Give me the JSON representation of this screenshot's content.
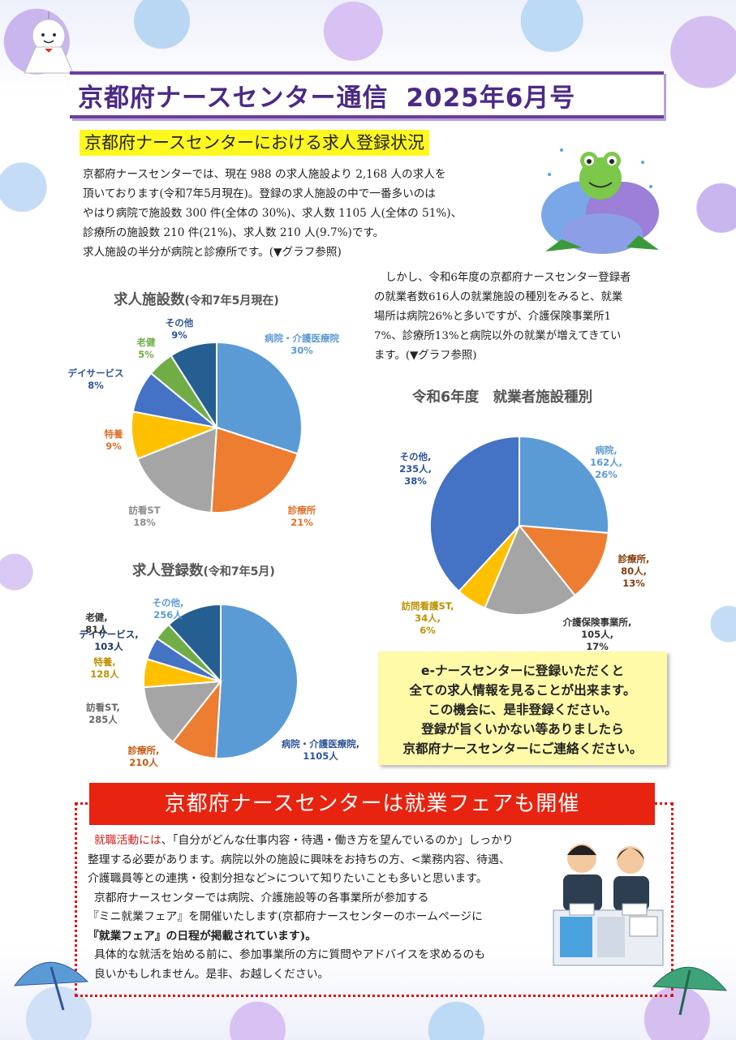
{
  "header": {
    "title": "京都府ナースセンター通信",
    "issue": "2025年6月号"
  },
  "section1": {
    "heading": "京都府ナースセンターにおける求人登録状況",
    "lines": [
      "京都府ナースセンターでは、現在 988 の求人施設より 2,168 人の求人を",
      "頂いております(令和7年5月現在)。登録の求人施設の中で一番多いのは",
      "やはり病院で施設数 300 件(全体の 30%)、求人数 1105 人(全体の 51%)、",
      "診療所の施設数 210 件(21%)、求人数 210 人(9.7%)です。",
      "求人施設の半分が病院と診療所です。(▼グラフ参照)"
    ]
  },
  "section2": {
    "lines": [
      "しかし、令和6年度の京都府ナースセンター登録者",
      "の就業者数616人の就業施設の種別をみると、就業",
      "場所は病院26%と多いですが、介護保険事業所1",
      "7%、診療所13%と病院以外の就業が増えてきてい",
      "ます。(▼グラフ参照)"
    ]
  },
  "chart_data": [
    {
      "type": "pie",
      "title": "求人施設数",
      "subtitle": "(令和7年5月現在)",
      "slices": [
        {
          "label": "病院・介護医療院",
          "text": "30%",
          "value": 30,
          "color": "#5b9bd5",
          "text_color": "#5b9bd5"
        },
        {
          "label": "診療所",
          "text": "21%",
          "value": 21,
          "color": "#ed7d31",
          "text_color": "#e07028"
        },
        {
          "label": "訪看ST",
          "text": "18%",
          "value": 18,
          "color": "#a5a5a5",
          "text_color": "#8c8c8c"
        },
        {
          "label": "特養",
          "text": "9%",
          "value": 9,
          "color": "#ffc000",
          "text_color": "#e07028"
        },
        {
          "label": "デイサービス",
          "text": "8%",
          "value": 8,
          "color": "#4472c4",
          "text_color": "#2f5597"
        },
        {
          "label": "老健",
          "text": "5%",
          "value": 5,
          "color": "#70ad47",
          "text_color": "#70ad47"
        },
        {
          "label": "その他",
          "text": "9%",
          "value": 9,
          "color": "#255e91",
          "text_color": "#2f5597"
        }
      ]
    },
    {
      "type": "pie",
      "title": "求人登録数",
      "subtitle": "(令和7年5月)",
      "slices": [
        {
          "label": "病院・介護医療院,",
          "text": "1105人",
          "value": 1105,
          "color": "#5b9bd5",
          "text_color": "#2f5597"
        },
        {
          "label": "診療所,",
          "text": "210人",
          "value": 210,
          "color": "#ed7d31",
          "text_color": "#c55a11"
        },
        {
          "label": "訪看ST,",
          "text": "285人",
          "value": 285,
          "color": "#a5a5a5",
          "text_color": "#666"
        },
        {
          "label": "特養,",
          "text": "128人",
          "value": 128,
          "color": "#ffc000",
          "text_color": "#bf9000"
        },
        {
          "label": "デイサービス,",
          "text": "103人",
          "value": 103,
          "color": "#4472c4",
          "text_color": "#1f3864"
        },
        {
          "label": "老健,",
          "text": "81人",
          "value": 81,
          "color": "#70ad47",
          "text_color": "#333"
        },
        {
          "label": "その他,",
          "text": "256人",
          "value": 256,
          "color": "#255e91",
          "text_color": "#5b9bd5"
        }
      ]
    },
    {
      "type": "pie",
      "title": "令和6年度　就業者施設種別",
      "slices": [
        {
          "label": "病院,",
          "text": "162人,",
          "pct": "26%",
          "value": 162,
          "color": "#5b9bd5",
          "text_color": "#5b9bd5"
        },
        {
          "label": "診療所,",
          "text": "80人,",
          "pct": "13%",
          "value": 80,
          "color": "#ed7d31",
          "text_color": "#843c0c"
        },
        {
          "label": "介護保険事業所,",
          "text": "105人,",
          "pct": "17%",
          "value": 105,
          "color": "#a5a5a5",
          "text_color": "#333"
        },
        {
          "label": "訪問看護ST,",
          "text": "34人,",
          "pct": "6%",
          "value": 34,
          "color": "#ffc000",
          "text_color": "#bf9000"
        },
        {
          "label": "その他,",
          "text": "235人,",
          "pct": "38%",
          "value": 235,
          "color": "#4472c4",
          "text_color": "#2f5597"
        }
      ]
    }
  ],
  "notice": {
    "lines": [
      "e-ナースセンターに登録いただくと",
      "全ての求人情報を見ることが出来ます。",
      "この機会に、是非登録ください。",
      "登録が旨くいかない等ありましたら",
      "京都府ナースセンターにご連絡ください。"
    ]
  },
  "fair": {
    "heading": "京都府ナースセンターは就業フェアも開催",
    "lead_red": "就職活動には",
    "line1_rest": "、「自分がどんな仕事内容・待遇・働き方を望んでいるのか」しっかり",
    "lines": [
      "整理する必要があります。病院以外の施設に興味をお持ちの方、<業務内容、待遇、",
      "介護職員等との連携・役割分担など>について知りたいことも多いと思います。",
      "京都府ナースセンターでは病院、介護施設等の各事業所が参加する",
      "『ミニ就業フェア』を開催いたします(京都府ナースセンターのホームページに",
      "『就業フェア』の日程が掲載されています)。",
      "具体的な就活を始める前に、参加事業所の方に質問やアドバイスを求めるのも",
      "良いかもしれません。是非、お越しください。"
    ]
  }
}
